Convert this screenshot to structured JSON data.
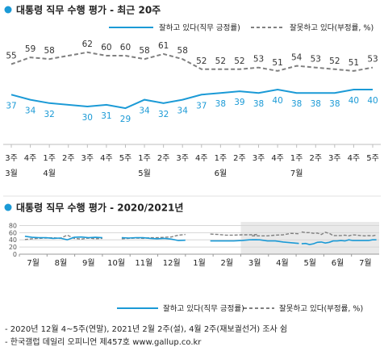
{
  "chart1": {
    "title": "대통령 직무 수행 평가 - 최근 20주",
    "legend_positive": "잘하고 있다(직무 긍정률)",
    "legend_negative": "잘못하고 있다(부정률, %)",
    "positive_color": "#1b9ad6",
    "negative_color": "#808080"
  },
  "chart2": {
    "title": "대통령 직무 수행 평가 - 2020/2021년",
    "legend_positive": "잘하고 있다(직무 긍정률)",
    "legend_negative": "잘못하고 있다(부정률, %)"
  },
  "footnotes": [
    "- 2020년 12월 4~5주(연말), 2021년 2월 2주(설), 4월 2주(재보궐선거) 조사 쉼",
    "- 한국갤럽 데일리 오피니언 제457호 www.gallup.co.kr"
  ],
  "chart_data": [
    {
      "type": "line",
      "title": "대통령 직무 수행 평가 - 최근 20주",
      "x": [
        "3주",
        "4주",
        "1주",
        "2주",
        "3주",
        "4주",
        "5주",
        "1주",
        "2주",
        "3주",
        "4주",
        "1주",
        "2주",
        "3주",
        "4주",
        "1주",
        "2주",
        "3주",
        "4주",
        "5주"
      ],
      "month_labels": [
        {
          "index": 0,
          "label": "3월"
        },
        {
          "index": 2,
          "label": "4월"
        },
        {
          "index": 7,
          "label": "5월"
        },
        {
          "index": 11,
          "label": "6월"
        },
        {
          "index": 15,
          "label": "7월"
        }
      ],
      "series": [
        {
          "name": "잘하고 있다(직무 긍정률)",
          "style": "solid",
          "color": "#1b9ad6",
          "values": [
            37,
            34,
            32,
            null,
            30,
            31,
            29,
            34,
            32,
            34,
            37,
            38,
            39,
            38,
            40,
            38,
            38,
            38,
            40,
            40
          ]
        },
        {
          "name": "잘못하고 있다(부정률, %)",
          "style": "dashed",
          "color": "#808080",
          "values": [
            55,
            59,
            58,
            null,
            62,
            60,
            60,
            58,
            61,
            58,
            52,
            52,
            52,
            53,
            51,
            54,
            53,
            52,
            51,
            53
          ]
        }
      ],
      "ylim": [
        0,
        100
      ]
    },
    {
      "type": "line",
      "title": "대통령 직무 수행 평가 - 2020/2021년",
      "months": [
        "7월",
        "8월",
        "9월",
        "10월",
        "11월",
        "12월",
        "1월",
        "2월",
        "3월",
        "4월",
        "5월",
        "6월",
        "7월"
      ],
      "y_ticks": [
        0,
        20,
        40,
        60,
        80
      ],
      "ylim": [
        0,
        90
      ],
      "highlight_from_month_index": 8,
      "series": [
        {
          "name": "잘하고 있다(직무 긍정률)",
          "style": "solid",
          "segments": [
            [
              50,
              47,
              46,
              46,
              44,
              45,
              40,
              47,
              48,
              46,
              47,
              46
            ],
            [
              46,
              45,
              46,
              46,
              44,
              43,
              44,
              42,
              38,
              39
            ],
            [
              37,
              37,
              37,
              37,
              38,
              40,
              40
            ],
            [
              40,
              40,
              37,
              37,
              34,
              32,
              30
            ],
            [
              29,
              30,
              27,
              29,
              33,
              34,
              31,
              33,
              37,
              37,
              38,
              37,
              40,
              38,
              38,
              38,
              38,
              38,
              40,
              40
            ]
          ]
        },
        {
          "name": "잘못하고 있다(부정률, %)",
          "style": "dashed",
          "segments": [
            [
              41,
              43,
              44,
              45,
              46,
              44,
              53,
              44,
              42,
              45,
              43,
              44
            ],
            [
              43,
              44,
              45,
              44,
              46,
              46,
              47,
              48,
              53,
              55
            ],
            [
              56,
              55,
              53,
              53,
              54,
              54,
              55
            ],
            [
              51,
              51,
              51,
              53,
              54,
              58,
              57
            ],
            [
              62,
              60,
              60,
              58,
              59,
              55,
              61,
              58,
              52,
              52,
              52,
              53,
              51,
              54,
              53,
              52,
              51,
              52,
              51,
              53
            ]
          ]
        }
      ]
    }
  ]
}
